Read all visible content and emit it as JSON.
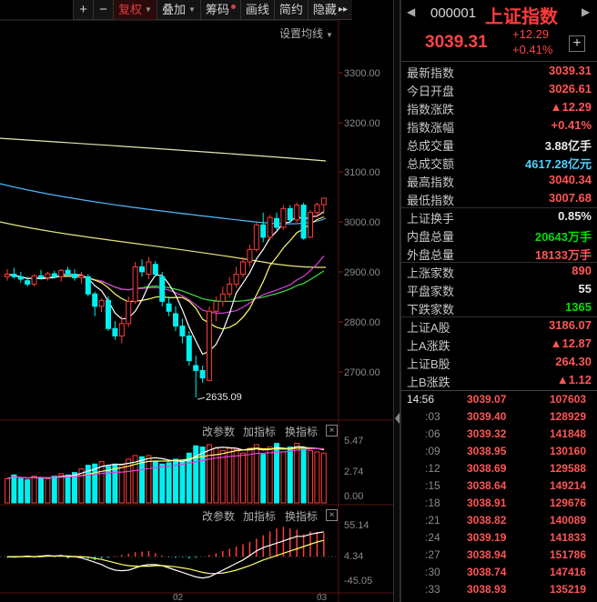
{
  "toolbar": {
    "plus": "+",
    "minus": "−",
    "fuquan": "复权",
    "diejia": "叠加",
    "chouma": "筹码",
    "huaxian": "画线",
    "jianyue": "简约",
    "yincang": "隐藏"
  },
  "chart": {
    "ma_settings": "设置均线",
    "y_labels": [
      "3300.00",
      "3200.00",
      "3100.00",
      "3000.00",
      "2900.00",
      "2800.00",
      "2700.00"
    ],
    "low_annotation": "2635.09",
    "volume_panel": {
      "params": "改参数",
      "add_indicator": "加指标",
      "switch_indicator": "换指标",
      "close": "×",
      "y_labels": [
        "5.47",
        "2.74",
        "0.00"
      ]
    },
    "macd_panel": {
      "params": "改参数",
      "add_indicator": "加指标",
      "switch_indicator": "换指标",
      "close": "×",
      "y_labels": [
        "55.14",
        "4.34",
        "-45.05"
      ]
    },
    "x_labels": [
      "02",
      "03"
    ]
  },
  "chart_data": {
    "type": "candlestick",
    "ylim": [
      2630,
      3330
    ],
    "up_color": "#ff3c3c",
    "down_color": "#00f0f0",
    "candles_ohlc": [
      [
        2880,
        2895,
        2872,
        2885
      ],
      [
        2885,
        2898,
        2876,
        2880
      ],
      [
        2880,
        2890,
        2868,
        2875
      ],
      [
        2872,
        2880,
        2860,
        2865
      ],
      [
        2865,
        2885,
        2860,
        2882
      ],
      [
        2882,
        2894,
        2874,
        2878
      ],
      [
        2878,
        2890,
        2872,
        2886
      ],
      [
        2886,
        2892,
        2876,
        2880
      ],
      [
        2880,
        2895,
        2870,
        2893
      ],
      [
        2893,
        2900,
        2880,
        2885
      ],
      [
        2885,
        2895,
        2872,
        2878
      ],
      [
        2878,
        2890,
        2866,
        2882
      ],
      [
        2880,
        2885,
        2840,
        2845
      ],
      [
        2845,
        2850,
        2800,
        2820
      ],
      [
        2820,
        2836,
        2808,
        2832
      ],
      [
        2832,
        2840,
        2770,
        2775
      ],
      [
        2775,
        2790,
        2752,
        2760
      ],
      [
        2760,
        2800,
        2745,
        2785
      ],
      [
        2785,
        2840,
        2778,
        2830
      ],
      [
        2830,
        2910,
        2825,
        2900
      ],
      [
        2900,
        2915,
        2880,
        2890
      ],
      [
        2885,
        2920,
        2875,
        2910
      ],
      [
        2905,
        2912,
        2880,
        2885
      ],
      [
        2880,
        2890,
        2820,
        2830
      ],
      [
        2825,
        2840,
        2800,
        2810
      ],
      [
        2805,
        2820,
        2770,
        2780
      ],
      [
        2780,
        2795,
        2745,
        2760
      ],
      [
        2760,
        2770,
        2700,
        2710
      ],
      [
        2700,
        2720,
        2635,
        2690
      ],
      [
        2690,
        2700,
        2665,
        2675
      ],
      [
        2670,
        2820,
        2668,
        2810
      ],
      [
        2810,
        2840,
        2790,
        2830
      ],
      [
        2830,
        2860,
        2820,
        2845
      ],
      [
        2845,
        2880,
        2838,
        2865
      ],
      [
        2865,
        2900,
        2858,
        2885
      ],
      [
        2885,
        2920,
        2878,
        2910
      ],
      [
        2910,
        2945,
        2900,
        2935
      ],
      [
        2935,
        2990,
        2930,
        2985
      ],
      [
        2985,
        3010,
        2950,
        2960
      ],
      [
        2960,
        3005,
        2955,
        3000
      ],
      [
        2998,
        3010,
        2975,
        2980
      ],
      [
        2980,
        3025,
        2975,
        3018
      ],
      [
        3018,
        3025,
        2990,
        2995
      ],
      [
        2995,
        3030,
        2990,
        3025
      ],
      [
        3025,
        3030,
        2955,
        2958
      ],
      [
        2960,
        3015,
        2958,
        3010
      ],
      [
        3010,
        3030,
        3000,
        3026
      ],
      [
        3026,
        3040,
        3007,
        3039
      ]
    ],
    "volume": [
      2.0,
      2.3,
      2.0,
      1.9,
      2.2,
      2.1,
      2.0,
      2.2,
      2.4,
      2.3,
      2.5,
      2.8,
      3.1,
      3.2,
      3.4,
      3.0,
      3.2,
      3.1,
      3.6,
      3.9,
      3.8,
      3.9,
      3.4,
      3.2,
      3.3,
      3.6,
      3.5,
      4.1,
      4.7,
      4.6,
      4.8,
      4.5,
      4.3,
      4.5,
      4.4,
      4.1,
      4.5,
      4.8,
      4.0,
      4.6,
      4.9,
      4.2,
      4.6,
      4.9,
      4.4,
      4.3,
      4.2,
      4.1
    ],
    "volume_up": [
      true,
      false,
      false,
      false,
      true,
      false,
      true,
      false,
      true,
      false,
      false,
      true,
      false,
      false,
      true,
      false,
      false,
      true,
      true,
      true,
      false,
      true,
      false,
      false,
      false,
      false,
      false,
      false,
      false,
      false,
      true,
      true,
      true,
      true,
      true,
      true,
      true,
      true,
      false,
      true,
      false,
      true,
      false,
      true,
      false,
      true,
      true,
      true
    ],
    "macd_hist": [
      -2,
      -1,
      1,
      2,
      -2,
      1,
      2,
      -1,
      3,
      -3,
      2,
      -2,
      -4,
      -6,
      -3,
      -2,
      1,
      3,
      5,
      8,
      9,
      10,
      6,
      2,
      -1,
      -2,
      -1,
      -3,
      -2,
      0,
      3,
      6,
      10,
      14,
      18,
      22,
      26,
      32,
      38,
      45,
      50,
      53,
      50,
      48,
      40,
      45,
      44,
      42
    ],
    "dif": [
      0,
      -1,
      0,
      1,
      0,
      1,
      2,
      1,
      2,
      0,
      0,
      -2,
      -6,
      -10,
      -14,
      -20,
      -24,
      -25,
      -24,
      -20,
      -16,
      -14,
      -14,
      -16,
      -20,
      -24,
      -28,
      -32,
      -36,
      -38,
      -36,
      -30,
      -24,
      -18,
      -12,
      -6,
      2,
      10,
      16,
      20,
      24,
      28,
      32,
      36,
      36,
      40,
      42,
      44
    ],
    "dea": [
      0,
      0,
      0,
      0,
      0,
      0,
      1,
      1,
      1,
      1,
      0,
      0,
      -1,
      -3,
      -5,
      -8,
      -11,
      -14,
      -16,
      -17,
      -17,
      -17,
      -16,
      -16,
      -17,
      -18,
      -20,
      -22,
      -25,
      -28,
      -30,
      -30,
      -29,
      -27,
      -24,
      -20,
      -16,
      -11,
      -6,
      -2,
      2,
      6,
      10,
      14,
      18,
      22,
      26,
      29
    ]
  },
  "quote": {
    "code": "000001",
    "name": "上证指数",
    "price": "3039.31",
    "change": "+12.29",
    "change_pct": "+0.41%",
    "add_btn": "+"
  },
  "info_rows": [
    {
      "label": "最新指数",
      "value": "3039.31",
      "color": "#ff5555"
    },
    {
      "label": "今日开盘",
      "value": "3026.61",
      "color": "#ff5555"
    },
    {
      "label": "指数涨跌",
      "value": "▲12.29",
      "color": "#ff5555"
    },
    {
      "label": "指数涨幅",
      "value": "+0.41%",
      "color": "#ff5555"
    },
    {
      "label": "总成交量",
      "value": "3.88亿手",
      "color": "#e8e8e8"
    },
    {
      "label": "总成交额",
      "value": "4617.28亿元",
      "color": "#4fd0ff"
    },
    {
      "label": "最高指数",
      "value": "3040.34",
      "color": "#ff5555"
    },
    {
      "label": "最低指数",
      "value": "3007.68",
      "color": "#ff5555"
    },
    {
      "label": "上证换手",
      "value": "0.85%",
      "color": "#e8e8e8"
    },
    {
      "label": "内盘总量",
      "value": "20643万手",
      "color": "#00e000"
    },
    {
      "label": "外盘总量",
      "value": "18133万手",
      "color": "#ff5555"
    },
    {
      "label": "上涨家数",
      "value": "890",
      "color": "#ff5555"
    },
    {
      "label": "平盘家数",
      "value": "55",
      "color": "#e8e8e8"
    },
    {
      "label": "下跌家数",
      "value": "1365",
      "color": "#00e000"
    },
    {
      "label": "上证A股",
      "value": "3186.07",
      "color": "#ff5555"
    },
    {
      "label": "上A涨跌",
      "value": "▲12.87",
      "color": "#ff5555"
    },
    {
      "label": "上证B股",
      "value": "264.30",
      "color": "#ff5555"
    },
    {
      "label": "上B涨跌",
      "value": "▲1.12",
      "color": "#ff5555"
    }
  ],
  "ticks": [
    {
      "time": "14:56",
      "price": "3039.07",
      "vol": "107603"
    },
    {
      "time": ":03",
      "price": "3039.40",
      "vol": "128929"
    },
    {
      "time": ":06",
      "price": "3039.32",
      "vol": "141848"
    },
    {
      "time": ":09",
      "price": "3038.95",
      "vol": "130160"
    },
    {
      "time": ":12",
      "price": "3038.69",
      "vol": "129588"
    },
    {
      "time": ":15",
      "price": "3038.64",
      "vol": "149214"
    },
    {
      "time": ":18",
      "price": "3038.91",
      "vol": "129676"
    },
    {
      "time": ":21",
      "price": "3038.82",
      "vol": "140089"
    },
    {
      "time": ":24",
      "price": "3039.19",
      "vol": "141833"
    },
    {
      "time": ":27",
      "price": "3038.94",
      "vol": "151786"
    },
    {
      "time": ":30",
      "price": "3038.74",
      "vol": "147416"
    },
    {
      "time": ":33",
      "price": "3038.93",
      "vol": "135219"
    }
  ]
}
